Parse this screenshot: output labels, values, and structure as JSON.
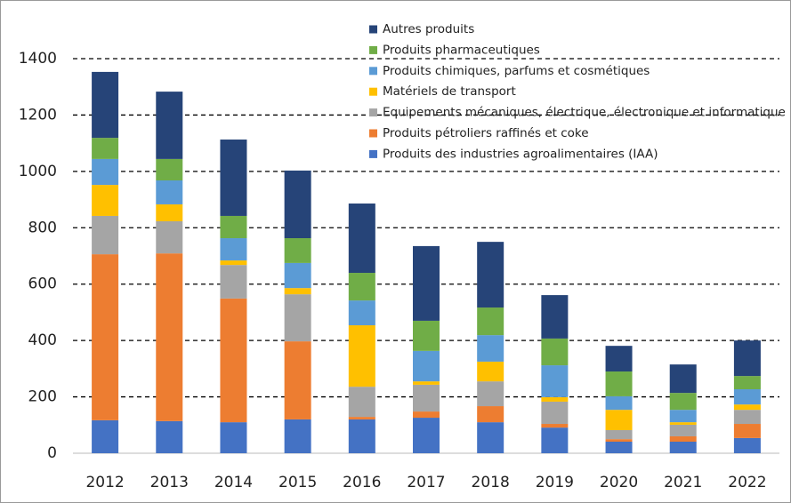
{
  "chart_data": {
    "type": "stacked_bar",
    "categories": [
      "2012",
      "2013",
      "2014",
      "2015",
      "2016",
      "2017",
      "2018",
      "2019",
      "2020",
      "2021",
      "2022"
    ],
    "series": [
      {
        "name": "Produits des industries agroalimentaires (IAA)",
        "color": "#4472c4",
        "values": [
          117,
          114,
          110,
          120,
          120,
          126,
          110,
          91,
          41,
          41,
          54
        ]
      },
      {
        "name": "Produits pétroliers raffinés et coke",
        "color": "#ed7d31",
        "values": [
          589,
          595,
          439,
          277,
          9,
          22,
          57,
          13,
          9,
          19,
          50
        ]
      },
      {
        "name": "Equipements mécaniques, électrique, électronique et informatique",
        "color": "#a5a5a5",
        "values": [
          136,
          114,
          119,
          167,
          107,
          95,
          88,
          79,
          32,
          41,
          50
        ]
      },
      {
        "name": "Matériels de transport",
        "color": "#ffc000",
        "values": [
          110,
          60,
          16,
          22,
          218,
          12,
          70,
          16,
          72,
          9,
          19
        ]
      },
      {
        "name": "Produits chimiques, parfums et cosmétiques",
        "color": "#5b9bd5",
        "values": [
          92,
          85,
          79,
          89,
          88,
          108,
          94,
          113,
          48,
          44,
          54
        ]
      },
      {
        "name": "Produits pharmaceutiques",
        "color": "#70ad47",
        "values": [
          75,
          76,
          79,
          88,
          98,
          107,
          98,
          95,
          88,
          60,
          47
        ]
      },
      {
        "name": "Autres produits",
        "color": "#264478",
        "values": [
          234,
          239,
          271,
          240,
          246,
          265,
          233,
          154,
          91,
          101,
          126
        ]
      }
    ],
    "ylim": [
      0,
      1400
    ],
    "yticks": [
      0,
      200,
      400,
      600,
      800,
      1000,
      1200,
      1400
    ],
    "grid": true,
    "legend": "top-right"
  }
}
